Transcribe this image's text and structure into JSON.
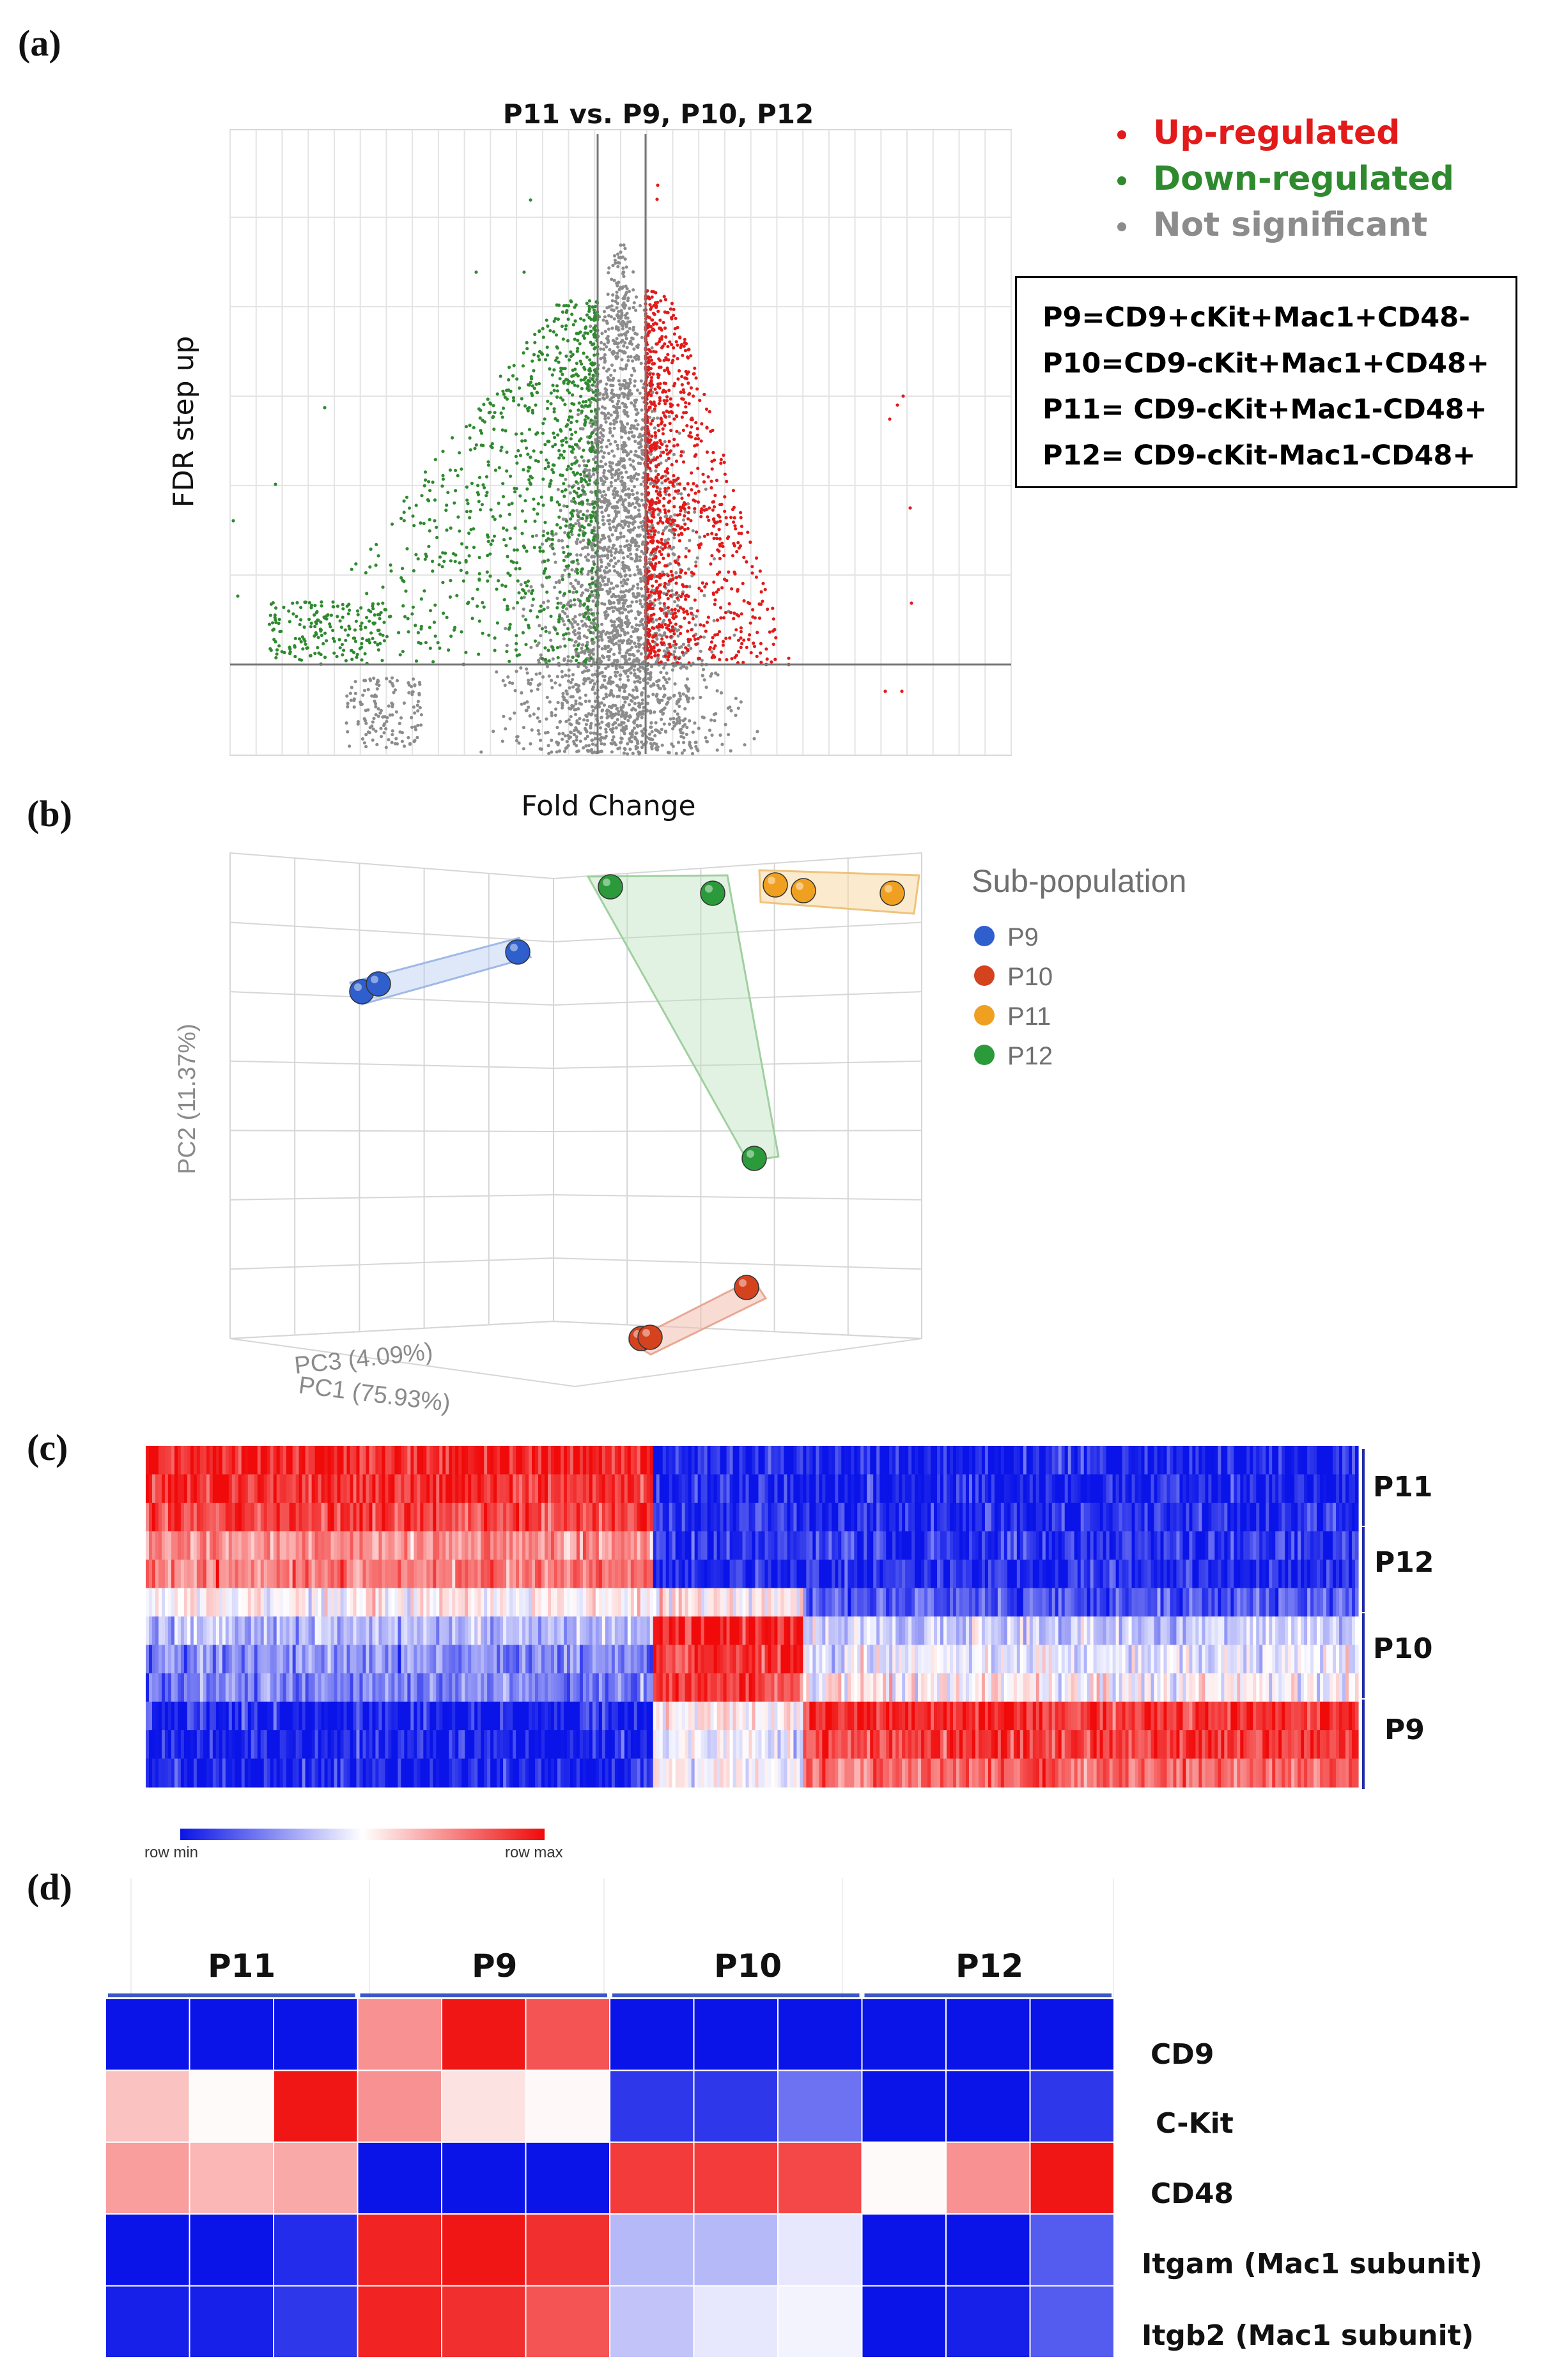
{
  "panels": {
    "a": "(a)",
    "b": "(b)",
    "c": "(c)",
    "d": "(d)"
  },
  "colors": {
    "up": "#e21a1a",
    "down": "#2f8a2f",
    "ns": "#8c8c8c",
    "low": "#0a14e8",
    "high": "#f00a0a"
  },
  "chart_data": [
    {
      "type": "scatter",
      "title": "P11 vs. P9, P10, P12",
      "xlabel": "Fold Change",
      "ylabel": "FDR step up",
      "x_scale": "log2",
      "legend_position": "top-right",
      "legend": [
        {
          "name": "Up-regulated",
          "color": "#e21a1a",
          "icon": "dot"
        },
        {
          "name": "Down-regulated",
          "color": "#2f8a2f",
          "icon": "dot"
        },
        {
          "name": "Not significant",
          "color": "#8c8c8c",
          "icon": "dot"
        }
      ],
      "cutoffs": {
        "fold_change": [
          -2,
          2
        ]
      },
      "grid": true
    },
    {
      "type": "scatter",
      "subtype": "3d-pca",
      "legend_title": "Sub-population",
      "axes": {
        "pc1": "PC1 (75.93%)",
        "pc2": "PC2 (11.37%)",
        "pc3": "PC3 (4.09%)"
      },
      "legend_position": "right",
      "series": [
        {
          "name": "P9",
          "color": "#2e5fcc",
          "points": 3
        },
        {
          "name": "P10",
          "color": "#d4431e",
          "points": 3
        },
        {
          "name": "P11",
          "color": "#f0a020",
          "points": 3
        },
        {
          "name": "P12",
          "color": "#2a9a3a",
          "points": 3
        }
      ]
    },
    {
      "type": "heatmap",
      "row_groups": [
        "P11",
        "P12",
        "P10",
        "P9"
      ],
      "colorbar": {
        "min_label": "row min",
        "max_label": "row max"
      }
    },
    {
      "type": "heatmap",
      "column_groups": [
        "P11",
        "P9",
        "P10",
        "P12"
      ],
      "rows": [
        "CD9",
        "C-Kit",
        "CD48",
        "Itgam (Mac1 subunit)",
        "Itgb2 (Mac1 subunit)"
      ],
      "scale": "row min (blue) to row max (red), -1 to 1",
      "values": [
        [
          -1,
          -1,
          -1,
          0.45,
          0.95,
          0.7,
          -1,
          -1,
          -1,
          -1,
          -1,
          -1
        ],
        [
          0.25,
          0.02,
          0.95,
          0.45,
          0.12,
          0.03,
          -0.85,
          -0.85,
          -0.6,
          -1,
          -1,
          -0.85
        ],
        [
          0.4,
          0.3,
          0.35,
          -1,
          -1,
          -1,
          0.8,
          0.8,
          0.75,
          0.02,
          0.45,
          0.95
        ],
        [
          -1,
          -1,
          -0.9,
          0.9,
          0.95,
          0.85,
          -0.3,
          -0.3,
          -0.1,
          -1,
          -1,
          -0.7
        ],
        [
          -0.95,
          -0.95,
          -0.85,
          0.9,
          0.85,
          0.7,
          -0.25,
          -0.1,
          -0.05,
          -1,
          -0.95,
          -0.7
        ]
      ]
    }
  ]
}
